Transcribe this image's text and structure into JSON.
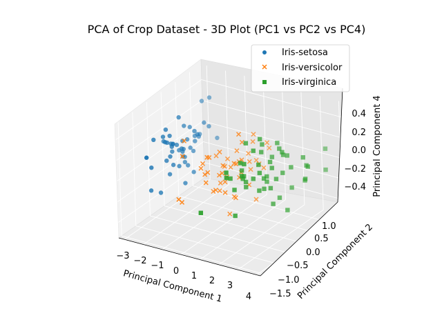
{
  "chart_data": {
    "type": "scatter",
    "title": "PCA of Crop Dataset - 3D Plot (PC1 vs PC2 vs PC4)",
    "xlabel": "Principal Component 1",
    "ylabel": "Principal Component 2",
    "zlabel": "Principal Component 4",
    "xticks": [
      "−3",
      "−2",
      "−1",
      "0",
      "1",
      "2",
      "3",
      "4"
    ],
    "yticks": [
      "−1.5",
      "−1.0",
      "−0.5",
      "0.0",
      "0.5",
      "1.0"
    ],
    "zticks": [
      "−0.4",
      "−0.2",
      "0.0",
      "0.2",
      "0.4"
    ],
    "xlim": [
      -3.3,
      4.2
    ],
    "ylim": [
      -1.6,
      1.4
    ],
    "zlim": [
      -0.55,
      0.55
    ],
    "grid": true,
    "legend_position": "top-right",
    "series": [
      {
        "name": "Iris-setosa",
        "marker": "circle",
        "color": "#1f77b4",
        "points": [
          [
            -2.7,
            0.3,
            0.05
          ],
          [
            -2.8,
            -0.2,
            -0.05
          ],
          [
            -3.0,
            -0.1,
            0.1
          ],
          [
            -2.8,
            -0.3,
            0.2
          ],
          [
            -2.7,
            0.3,
            -0.1
          ],
          [
            -2.3,
            0.8,
            0.15
          ],
          [
            -2.8,
            -0.1,
            -0.2
          ],
          [
            -2.6,
            0.2,
            0.0
          ],
          [
            -3.0,
            -0.6,
            -0.05
          ],
          [
            -2.7,
            -0.1,
            0.1
          ],
          [
            -2.5,
            0.6,
            0.05
          ],
          [
            -2.6,
            0.1,
            -0.15
          ],
          [
            -2.8,
            -0.2,
            0.25
          ],
          [
            -3.2,
            -0.5,
            -0.3
          ],
          [
            -2.6,
            1.2,
            0.3
          ],
          [
            -2.4,
            1.3,
            -0.1
          ],
          [
            -2.6,
            0.8,
            0.0
          ],
          [
            -2.6,
            0.3,
            0.2
          ],
          [
            -2.2,
            0.9,
            0.1
          ],
          [
            -2.6,
            0.5,
            -0.05
          ],
          [
            -2.2,
            0.4,
            0.15
          ],
          [
            -2.6,
            0.4,
            -0.2
          ],
          [
            -3.4,
            0.1,
            0.05
          ],
          [
            -2.3,
            0.1,
            -0.3
          ],
          [
            -2.4,
            0.0,
            0.35
          ],
          [
            -2.5,
            -0.2,
            0.1
          ],
          [
            -2.5,
            0.2,
            0.0
          ],
          [
            -2.6,
            0.4,
            0.05
          ],
          [
            -2.6,
            0.3,
            -0.1
          ],
          [
            -2.6,
            -0.2,
            0.2
          ],
          [
            -2.6,
            -0.1,
            0.1
          ],
          [
            -2.3,
            0.4,
            -0.25
          ],
          [
            -2.7,
            0.9,
            0.0
          ],
          [
            -2.7,
            1.0,
            0.3
          ],
          [
            -2.6,
            -0.1,
            -0.1
          ],
          [
            -2.8,
            0.0,
            0.0
          ],
          [
            -2.6,
            0.5,
            0.15
          ],
          [
            -2.9,
            0.3,
            -0.05
          ],
          [
            -3.0,
            -0.5,
            0.2
          ],
          [
            -2.6,
            0.3,
            -0.15
          ],
          [
            -2.9,
            0.1,
            0.05
          ],
          [
            -2.0,
            -1.4,
            0.25
          ],
          [
            -3.0,
            -0.3,
            -0.35
          ],
          [
            -2.4,
            0.1,
            0.0
          ],
          [
            -2.2,
            0.5,
            0.1
          ],
          [
            -2.6,
            -0.2,
            0.0
          ],
          [
            -2.6,
            0.6,
            -0.1
          ],
          [
            -2.9,
            -0.1,
            0.1
          ],
          [
            -2.5,
            0.6,
            0.0
          ],
          [
            -2.7,
            0.1,
            0.05
          ]
        ]
      },
      {
        "name": "Iris-versicolor",
        "marker": "x",
        "color": "#ff7f0e",
        "points": [
          [
            1.3,
            0.7,
            0.1
          ],
          [
            0.9,
            0.3,
            -0.05
          ],
          [
            1.5,
            0.5,
            0.2
          ],
          [
            0.2,
            -0.8,
            0.0
          ],
          [
            1.1,
            0.1,
            -0.15
          ],
          [
            0.6,
            -0.4,
            0.1
          ],
          [
            1.1,
            0.3,
            0.3
          ],
          [
            -0.8,
            -1.0,
            -0.2
          ],
          [
            1.0,
            0.2,
            0.05
          ],
          [
            -0.2,
            -0.7,
            0.1
          ],
          [
            -0.5,
            -1.3,
            -0.1
          ],
          [
            0.5,
            0.1,
            0.15
          ],
          [
            0.3,
            -0.8,
            0.25
          ],
          [
            0.9,
            -0.1,
            -0.05
          ],
          [
            -0.3,
            -0.1,
            0.1
          ],
          [
            0.9,
            0.5,
            0.0
          ],
          [
            0.6,
            -0.1,
            -0.25
          ],
          [
            0.2,
            -0.3,
            0.2
          ],
          [
            0.9,
            -0.6,
            -0.1
          ],
          [
            0.0,
            -0.6,
            0.05
          ],
          [
            1.1,
            -0.1,
            0.3
          ],
          [
            0.3,
            0.0,
            0.0
          ],
          [
            1.3,
            -0.5,
            -0.15
          ],
          [
            0.9,
            -0.2,
            0.1
          ],
          [
            0.7,
            0.1,
            -0.05
          ],
          [
            0.9,
            0.4,
            0.2
          ],
          [
            1.3,
            0.2,
            -0.3
          ],
          [
            1.6,
            0.3,
            0.0
          ],
          [
            0.8,
            -0.2,
            0.1
          ],
          [
            -0.2,
            -0.3,
            -0.2
          ],
          [
            0.0,
            -0.7,
            0.05
          ],
          [
            -0.1,
            -0.7,
            0.15
          ],
          [
            0.2,
            -0.3,
            -0.1
          ],
          [
            1.4,
            -0.4,
            0.45
          ],
          [
            0.6,
            -0.4,
            -0.05
          ],
          [
            0.8,
            0.3,
            0.1
          ],
          [
            1.2,
            0.4,
            0.0
          ],
          [
            0.8,
            -0.4,
            -0.35
          ],
          [
            0.2,
            -0.2,
            0.05
          ],
          [
            0.1,
            -0.6,
            0.2
          ],
          [
            0.4,
            -0.6,
            -0.1
          ],
          [
            0.9,
            0.0,
            0.1
          ],
          [
            0.3,
            -0.4,
            0.0
          ],
          [
            -0.7,
            -1.0,
            0.25
          ],
          [
            0.3,
            -0.4,
            -0.15
          ],
          [
            0.3,
            -0.1,
            0.1
          ],
          [
            0.4,
            -0.2,
            -0.05
          ],
          [
            0.6,
            0.1,
            0.05
          ],
          [
            -0.9,
            -0.8,
            0.35
          ],
          [
            0.3,
            -0.3,
            0.0
          ]
        ]
      },
      {
        "name": "Iris-virginica",
        "marker": "square",
        "color": "#2ca02c",
        "points": [
          [
            2.5,
            0.0,
            0.1
          ],
          [
            1.4,
            -0.6,
            -0.05
          ],
          [
            2.6,
            0.3,
            0.2
          ],
          [
            2.0,
            -0.3,
            0.3
          ],
          [
            2.4,
            0.0,
            -0.1
          ],
          [
            3.4,
            0.5,
            0.15
          ],
          [
            0.5,
            -1.2,
            -0.2
          ],
          [
            2.9,
            0.4,
            0.05
          ],
          [
            2.3,
            -0.3,
            0.1
          ],
          [
            3.0,
            0.8,
            -0.15
          ],
          [
            1.7,
            0.2,
            0.25
          ],
          [
            1.8,
            -0.2,
            0.0
          ],
          [
            2.2,
            0.2,
            -0.3
          ],
          [
            1.3,
            -0.8,
            0.1
          ],
          [
            1.6,
            -0.5,
            0.2
          ],
          [
            1.9,
            0.1,
            -0.05
          ],
          [
            1.9,
            0.0,
            0.35
          ],
          [
            3.5,
            1.2,
            -0.1
          ],
          [
            3.8,
            0.3,
            0.0
          ],
          [
            1.3,
            -0.8,
            0.15
          ],
          [
            2.4,
            0.3,
            -0.25
          ],
          [
            1.2,
            -0.6,
            0.05
          ],
          [
            3.8,
            0.4,
            0.1
          ],
          [
            1.4,
            -0.2,
            -0.05
          ],
          [
            2.3,
            0.4,
            0.2
          ],
          [
            2.6,
            0.6,
            -0.2
          ],
          [
            1.3,
            -0.2,
            0.0
          ],
          [
            1.3,
            -0.1,
            0.3
          ],
          [
            2.1,
            -0.2,
            -0.1
          ],
          [
            2.4,
            0.6,
            0.1
          ],
          [
            2.8,
            0.3,
            -0.35
          ],
          [
            3.2,
            1.4,
            0.05
          ],
          [
            2.1,
            -0.2,
            0.15
          ],
          [
            1.4,
            -0.2,
            -0.1
          ],
          [
            1.8,
            -0.5,
            0.2
          ],
          [
            3.1,
            0.8,
            0.0
          ],
          [
            2.1,
            0.2,
            0.1
          ],
          [
            1.9,
            0.1,
            -0.15
          ],
          [
            1.2,
            -0.2,
            0.05
          ],
          [
            2.2,
            0.4,
            0.25
          ],
          [
            2.4,
            0.2,
            -0.05
          ],
          [
            1.9,
            0.4,
            0.1
          ],
          [
            1.4,
            -0.6,
            -0.3
          ],
          [
            2.6,
            0.3,
            0.0
          ],
          [
            2.5,
            0.4,
            0.15
          ],
          [
            1.9,
            0.2,
            -0.1
          ],
          [
            1.5,
            -0.4,
            0.05
          ],
          [
            1.8,
            0.1,
            0.2
          ],
          [
            1.9,
            0.2,
            -0.05
          ],
          [
            1.4,
            -0.3,
            0.0
          ]
        ]
      }
    ]
  }
}
